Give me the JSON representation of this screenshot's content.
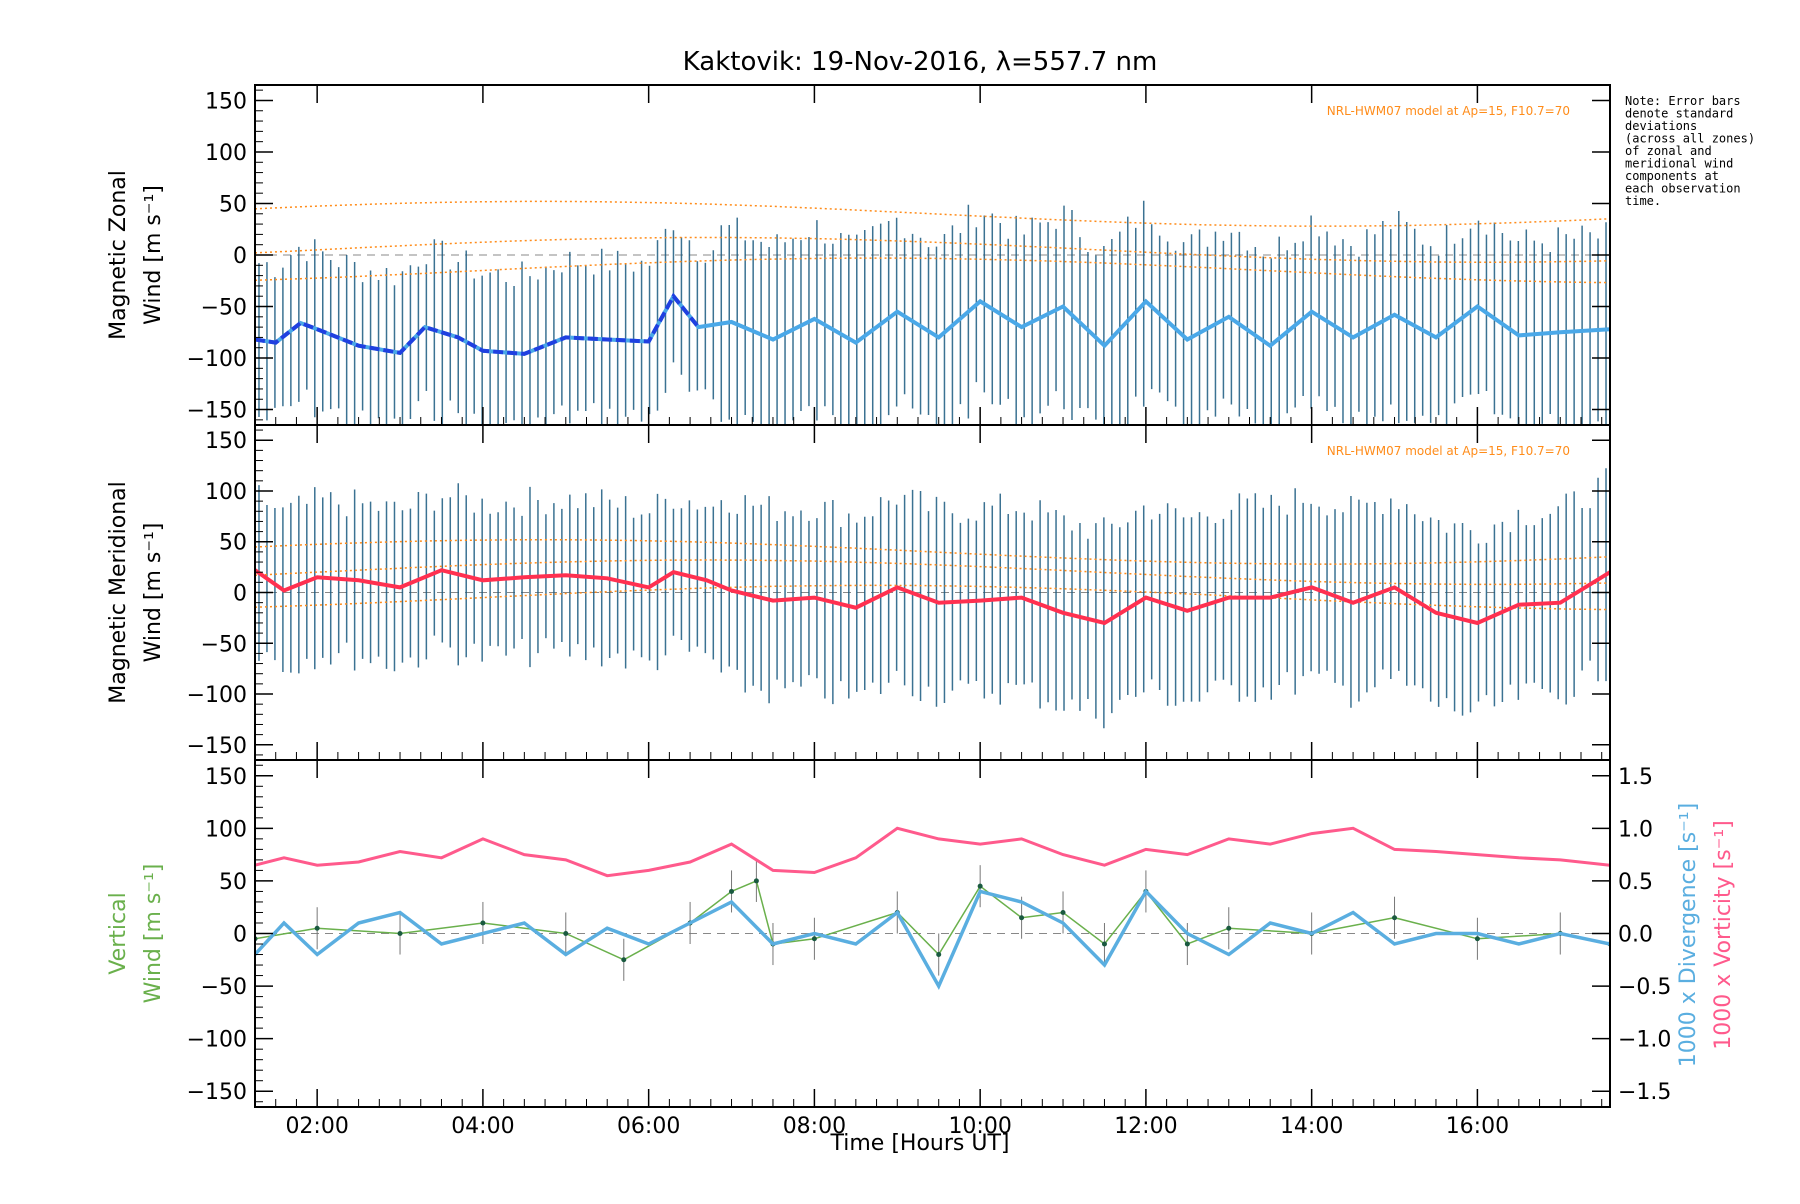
{
  "title": "Kaktovik: 19-Nov-2016, λ=557.7 nm",
  "note_lines": [
    "Note: Error bars",
    "denote standard",
    "deviations",
    "(across all zones)",
    "of zonal and",
    "meridional wind",
    "components at",
    "each observation",
    "time."
  ],
  "x_axis": {
    "label": "Time [Hours UT]",
    "ticks": [
      2,
      4,
      6,
      8,
      10,
      12,
      14,
      16
    ],
    "tick_labels": [
      "02:00",
      "04:00",
      "06:00",
      "08:00",
      "10:00",
      "12:00",
      "14:00",
      "16:00"
    ],
    "range": [
      1.25,
      17.6
    ]
  },
  "y_ticks": [
    150,
    100,
    50,
    0,
    -50,
    -100,
    -150
  ],
  "y_tick_labels": [
    "150",
    "100",
    "50",
    "0",
    "−50",
    "−100",
    "−150"
  ],
  "right_ticks": [
    1.5,
    1.0,
    0.5,
    0.0,
    -0.5,
    -1.0,
    -1.5
  ],
  "right_tick_labels": [
    "1.5",
    "1.0",
    "0.5",
    "0.0",
    "−0.5",
    "−1.0",
    "−1.5"
  ],
  "panels": {
    "zonal": {
      "ylabel_line1": "Magnetic Zonal",
      "ylabel_line2": "Wind [m s⁻¹]",
      "model_note": "NRL-HWM07 model at Ap=15, F10.7=70"
    },
    "meridional": {
      "ylabel_line1": "Magnetic Meridional",
      "ylabel_line2": "Wind [m s⁻¹]",
      "model_note": "NRL-HWM07 model at Ap=15, F10.7=70"
    },
    "vertical": {
      "ylabel_line1": "Vertical",
      "ylabel_line2": "Wind [m s⁻¹]",
      "right_label_div": "1000 x Divergence [s⁻¹]",
      "right_label_vort": "1000 x Vorticity [s⁻¹]"
    }
  },
  "colors": {
    "zonal_early": "#2040e0",
    "zonal_late": "#4aa8e8",
    "meridional": "#ff3050",
    "vertical": "#6ab04c",
    "divergence": "#5aaee0",
    "vorticity": "#ff5a8c",
    "errorbar": "#1a5a80",
    "model": "#ff8c1a"
  },
  "chart_data": [
    {
      "type": "line",
      "panel": "zonal",
      "ylabel": "Magnetic Zonal Wind [m s⁻¹]",
      "ylim": [
        -165,
        165
      ],
      "series": [
        {
          "values_x": [
            1.25,
            1.5,
            1.8,
            2.0,
            2.5,
            3.0,
            3.3,
            3.7,
            4.0,
            4.5,
            5.0,
            5.5,
            6.0,
            6.3,
            6.6,
            7.0,
            7.5,
            8.0,
            8.5,
            9.0,
            9.5,
            10.0,
            10.5,
            11.0,
            11.5,
            12.0,
            12.5,
            13.0,
            13.5,
            14.0,
            14.5,
            15.0,
            15.5,
            16.0,
            16.5,
            17.0,
            17.6
          ],
          "values_y": [
            -82,
            -85,
            -66,
            -72,
            -88,
            -95,
            -70,
            -80,
            -93,
            -96,
            -80,
            -82,
            -84,
            -40,
            -70,
            -65,
            -82,
            -62,
            -85,
            -55,
            -80,
            -45,
            -70,
            -50,
            -88,
            -45,
            -82,
            -60,
            -88,
            -55,
            -80,
            -58,
            -80,
            -50,
            -78,
            -75,
            -72
          ]
        }
      ]
    },
    {
      "type": "line",
      "panel": "meridional",
      "ylabel": "Magnetic Meridional Wind [m s⁻¹]",
      "ylim": [
        -165,
        165
      ],
      "series": [
        {
          "values_x": [
            1.25,
            1.6,
            2.0,
            2.5,
            3.0,
            3.5,
            4.0,
            4.5,
            5.0,
            5.5,
            6.0,
            6.3,
            6.7,
            7.0,
            7.5,
            8.0,
            8.5,
            9.0,
            9.5,
            10.0,
            10.5,
            11.0,
            11.5,
            12.0,
            12.5,
            13.0,
            13.5,
            14.0,
            14.5,
            15.0,
            15.5,
            16.0,
            16.5,
            17.0,
            17.6
          ],
          "values_y": [
            22,
            2,
            15,
            12,
            5,
            22,
            12,
            15,
            17,
            14,
            5,
            20,
            12,
            2,
            -8,
            -5,
            -15,
            5,
            -10,
            -8,
            -5,
            -20,
            -30,
            -5,
            -18,
            -5,
            -5,
            5,
            -10,
            5,
            -20,
            -30,
            -12,
            -10,
            20
          ]
        }
      ]
    },
    {
      "type": "line",
      "panel": "vertical",
      "ylabel": "Vertical Wind [m s⁻¹]",
      "ylim": [
        -165,
        165
      ],
      "series": [
        {
          "values_x": [
            1.25,
            2.0,
            3.0,
            4.0,
            5.0,
            5.7,
            6.5,
            7.0,
            7.3,
            7.5,
            8.0,
            9.0,
            9.5,
            10.0,
            10.5,
            11.0,
            11.5,
            12.0,
            12.5,
            13.0,
            14.0,
            15.0,
            16.0,
            17.0,
            17.6
          ],
          "values_y": [
            -5,
            5,
            0,
            10,
            0,
            -25,
            10,
            40,
            50,
            -10,
            -5,
            20,
            -20,
            45,
            15,
            20,
            -10,
            40,
            -10,
            5,
            0,
            15,
            -5,
            0,
            -10
          ]
        },
        {
          "values_x": [
            1.25,
            1.6,
            2.0,
            2.5,
            3.0,
            3.5,
            4.0,
            4.5,
            5.0,
            5.5,
            6.0,
            6.5,
            7.0,
            7.5,
            8.0,
            8.5,
            9.0,
            9.5,
            10.0,
            10.5,
            11.0,
            11.5,
            12.0,
            12.5,
            13.0,
            13.5,
            14.0,
            14.5,
            15.0,
            15.5,
            16.0,
            16.5,
            17.0,
            17.6
          ],
          "values_y": [
            -0.2,
            0.1,
            -0.2,
            0.1,
            0.2,
            -0.1,
            0.0,
            0.1,
            -0.2,
            0.05,
            -0.1,
            0.1,
            0.3,
            -0.1,
            0.0,
            -0.1,
            0.2,
            -0.5,
            0.4,
            0.3,
            0.1,
            -0.3,
            0.4,
            0.0,
            -0.2,
            0.1,
            0.0,
            0.2,
            -0.1,
            0.0,
            0.0,
            -0.1,
            0.0,
            -0.1
          ]
        },
        {
          "values_x": [
            1.25,
            1.6,
            2.0,
            2.5,
            3.0,
            3.5,
            4.0,
            4.5,
            5.0,
            5.5,
            6.0,
            6.5,
            7.0,
            7.5,
            8.0,
            8.5,
            9.0,
            9.5,
            10.0,
            10.5,
            11.0,
            11.5,
            12.0,
            12.5,
            13.0,
            13.5,
            14.0,
            14.5,
            15.0,
            15.5,
            16.0,
            16.5,
            17.0,
            17.6
          ],
          "values_y": [
            0.65,
            0.72,
            0.65,
            0.68,
            0.78,
            0.72,
            0.9,
            0.75,
            0.7,
            0.55,
            0.6,
            0.68,
            0.85,
            0.6,
            0.58,
            0.72,
            1.0,
            0.9,
            0.85,
            0.9,
            0.75,
            0.65,
            0.8,
            0.75,
            0.9,
            0.85,
            0.95,
            1.0,
            0.8,
            0.78,
            0.75,
            0.72,
            0.7,
            0.65
          ]
        }
      ]
    }
  ]
}
